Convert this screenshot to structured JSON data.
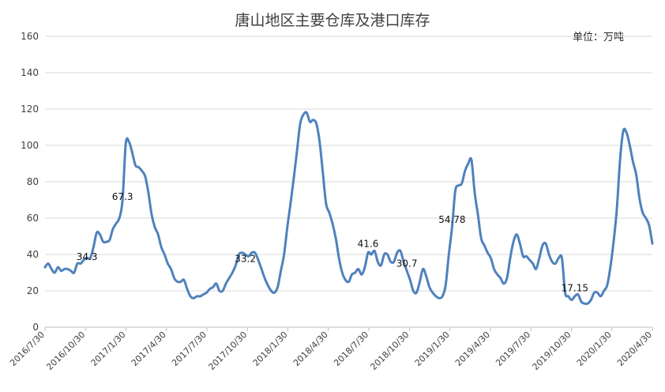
{
  "chart_data": {
    "type": "line",
    "title": "唐山地区主要仓库及港口库存",
    "unit_label": "单位：万吨",
    "ylim": [
      0,
      160
    ],
    "yticks": [
      "0",
      "20",
      "40",
      "60",
      "80",
      "100",
      "120",
      "140",
      "160"
    ],
    "x_tick_labels": [
      "2016/7/30",
      "2016/10/30",
      "2017/1/30",
      "2017/4/30",
      "2017/7/30",
      "2017/10/30",
      "2018/1/30",
      "2018/4/30",
      "2018/7/30",
      "2018/10/30",
      "2019/1/30",
      "2019/4/30",
      "2019/7/30",
      "2019/10/30",
      "2020/1/30",
      "2020/4/30"
    ],
    "grid": true,
    "legend": "none",
    "line_color": "#4F81BD",
    "series": [
      {
        "values": [
          33,
          35,
          32,
          30,
          33,
          31,
          32,
          32,
          31,
          30,
          35,
          35,
          37,
          38,
          38,
          44,
          52,
          51,
          47,
          47,
          48,
          54,
          57,
          60,
          70,
          101,
          102,
          96,
          89,
          88,
          86,
          83,
          74,
          62,
          55,
          51,
          44,
          40,
          35,
          32,
          27,
          25,
          25,
          26,
          21,
          17,
          16,
          17,
          17,
          18,
          19,
          21,
          22,
          24,
          20,
          20,
          24,
          27,
          30,
          34,
          40,
          41,
          40,
          39,
          41,
          41,
          37,
          32,
          27,
          23,
          20,
          19,
          22,
          31,
          40,
          55,
          68,
          82,
          97,
          112,
          117,
          118,
          113,
          114,
          112,
          102,
          85,
          68,
          63,
          57,
          49,
          38,
          30,
          26,
          25,
          29,
          30,
          32,
          29,
          33,
          41,
          40,
          42,
          36,
          34,
          40,
          40,
          36,
          36,
          41,
          42,
          36,
          31,
          26,
          20,
          19,
          25,
          32,
          28,
          22,
          19,
          17,
          16,
          17,
          23,
          40,
          55,
          75,
          78,
          79,
          86,
          90,
          92,
          74,
          62,
          49,
          45,
          41,
          38,
          32,
          29,
          27,
          24,
          27,
          38,
          47,
          51,
          46,
          39,
          39,
          37,
          35,
          32,
          38,
          45,
          46,
          40,
          36,
          35,
          38,
          38,
          19,
          17,
          15,
          17,
          18,
          14,
          13,
          13,
          15,
          19,
          19,
          17,
          20,
          23,
          33,
          47,
          65,
          92,
          108,
          107,
          100,
          91,
          84,
          71,
          63,
          60,
          56,
          46
        ]
      }
    ],
    "annotations": [
      {
        "label": "34.3",
        "index": 13,
        "value": 34.3
      },
      {
        "label": "67.3",
        "index": 24,
        "value": 67.3
      },
      {
        "label": "33.2",
        "index": 62,
        "value": 33.2
      },
      {
        "label": "41.6",
        "index": 100,
        "value": 41.6
      },
      {
        "label": "30.7",
        "index": 112,
        "value": 30.7
      },
      {
        "label": "54.78",
        "index": 126,
        "value": 54.78
      },
      {
        "label": "17.15",
        "index": 164,
        "value": 17.15
      }
    ]
  }
}
